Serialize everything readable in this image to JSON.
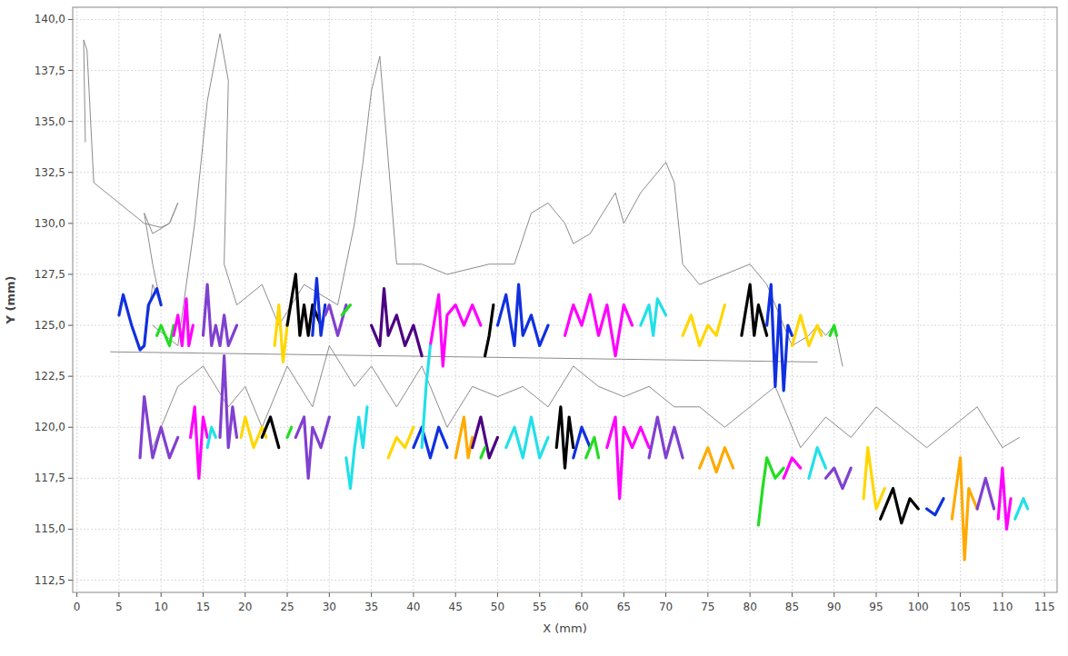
{
  "chart_data": {
    "type": "line",
    "x_label": "X (mm)",
    "y_label": "Y (mm)",
    "xlim": [
      -0.5,
      116.5
    ],
    "ylim": [
      111.9,
      140.6
    ],
    "xticks": [
      0,
      5,
      10,
      15,
      20,
      25,
      30,
      35,
      40,
      45,
      50,
      55,
      60,
      65,
      70,
      75,
      80,
      85,
      90,
      95,
      100,
      105,
      110,
      115
    ],
    "yticks": [
      {
        "value": 112.5,
        "label": "112,5"
      },
      {
        "value": 115,
        "label": "115,0"
      },
      {
        "value": 117.5,
        "label": "117,5"
      },
      {
        "value": 120,
        "label": "120,0"
      },
      {
        "value": 122.5,
        "label": "122,5"
      },
      {
        "value": 125,
        "label": "125,0"
      },
      {
        "value": 127.5,
        "label": "127,5"
      },
      {
        "value": 130,
        "label": "130,0"
      },
      {
        "value": 132.5,
        "label": "132,5"
      },
      {
        "value": 135,
        "label": "135,0"
      },
      {
        "value": 137.5,
        "label": "137,5"
      },
      {
        "value": 140,
        "label": "140,0"
      }
    ],
    "grid": true,
    "tick_labels": true,
    "series": [
      {
        "color": "#8c8c8c",
        "line_style": "thin",
        "x": [
          1,
          0.8,
          1.2,
          2,
          5,
          8,
          10,
          11,
          12,
          11,
          9,
          8,
          9,
          10,
          9,
          8.5
        ],
        "values": [
          134,
          139,
          138.5,
          132,
          131,
          130,
          129.8,
          130,
          131,
          130,
          129.5,
          130.5,
          128,
          126,
          127,
          125.5
        ]
      },
      {
        "color": "#8c8c8c",
        "line_style": "thin",
        "x": [
          9,
          12,
          14,
          15.5,
          17,
          18,
          17.5,
          19,
          22,
          24,
          27,
          31,
          33,
          34,
          35,
          36,
          38,
          41,
          44,
          49,
          52,
          54,
          56,
          58,
          59,
          61,
          64,
          65,
          67,
          69,
          70,
          71,
          72,
          74,
          77,
          80,
          82,
          85,
          87,
          88,
          89,
          90,
          91
        ],
        "values": [
          125,
          124,
          130,
          136,
          139.3,
          137,
          128,
          126,
          127,
          125,
          127,
          126,
          130,
          133,
          136.5,
          138.2,
          128,
          128,
          127.5,
          128,
          128,
          130.5,
          131,
          130,
          129,
          129.5,
          131.5,
          130,
          131.5,
          132.5,
          133,
          132,
          128,
          127,
          127.5,
          128,
          127,
          124,
          124.5,
          125,
          124.5,
          125,
          123
        ]
      },
      {
        "color": "#8c8c8c",
        "line_style": "thin",
        "x": [
          4,
          88
        ],
        "values": [
          123.7,
          123.2
        ]
      },
      {
        "color": "#8c8c8c",
        "line_style": "thin",
        "x": [
          9,
          12,
          15,
          18,
          20,
          22,
          25,
          28,
          30,
          33,
          35,
          38,
          41,
          44,
          47,
          50,
          53,
          56,
          59,
          62,
          65,
          68,
          71,
          74,
          77,
          80,
          83,
          86,
          89,
          92,
          95,
          98,
          101,
          104,
          107,
          110,
          112
        ],
        "values": [
          119,
          122,
          123,
          121,
          122,
          120,
          123,
          121,
          124,
          122,
          123,
          121,
          123,
          120,
          122,
          121.5,
          122,
          121,
          123,
          122,
          121.5,
          122,
          121,
          121,
          120,
          121,
          122,
          119,
          120.5,
          119.5,
          121,
          120,
          119,
          120,
          121,
          119,
          119.5
        ]
      },
      {
        "color": "#1030e0",
        "line_style": "bold",
        "x": [
          5,
          5.5,
          6.5,
          7.5,
          8,
          8.5,
          9.5,
          10
        ],
        "values": [
          125.5,
          126.5,
          125,
          123.8,
          124,
          126,
          126.8,
          126
        ]
      },
      {
        "color": "#22dd22",
        "line_style": "bold",
        "x": [
          9.5,
          10,
          11,
          11.5
        ],
        "values": [
          124.5,
          125,
          124,
          125
        ]
      },
      {
        "color": "#ff00ff",
        "line_style": "bold",
        "x": [
          11.5,
          12,
          12.5,
          13,
          13.3,
          13.8
        ],
        "values": [
          124.5,
          125.5,
          124,
          126.3,
          124,
          125
        ]
      },
      {
        "color": "#8040d0",
        "line_style": "bold",
        "x": [
          15,
          15.5,
          16,
          16.5,
          17,
          17.5,
          18,
          19
        ],
        "values": [
          124.5,
          127,
          124,
          125,
          124,
          125.5,
          124,
          125
        ]
      },
      {
        "color": "#ffd700",
        "line_style": "bold",
        "x": [
          23.5,
          24,
          24.5,
          25
        ],
        "values": [
          124,
          126,
          123.2,
          125
        ]
      },
      {
        "color": "#000000",
        "line_style": "bold",
        "x": [
          25,
          26,
          26.5,
          27,
          27.5,
          28,
          29
        ],
        "values": [
          125,
          127.5,
          124.5,
          126,
          124.5,
          126,
          125
        ]
      },
      {
        "color": "#1030e0",
        "line_style": "bold",
        "x": [
          28,
          28.5,
          29,
          29.5
        ],
        "values": [
          124.5,
          127.3,
          124.5,
          126
        ]
      },
      {
        "color": "#8040d0",
        "line_style": "bold",
        "x": [
          29.5,
          30,
          31,
          32
        ],
        "values": [
          125.5,
          126,
          124.5,
          126
        ]
      },
      {
        "color": "#22dd22",
        "line_style": "bold",
        "x": [
          31.5,
          32.5
        ],
        "values": [
          125.5,
          126
        ]
      },
      {
        "color": "#4b0082",
        "line_style": "bold",
        "x": [
          35,
          36,
          36.5,
          37,
          38,
          39,
          40,
          41
        ],
        "values": [
          125,
          124,
          126.8,
          124.5,
          125.5,
          124,
          125,
          123.5
        ]
      },
      {
        "color": "#ff00ff",
        "line_style": "bold",
        "x": [
          42,
          43,
          43.5,
          44,
          45,
          46,
          47,
          48
        ],
        "values": [
          124,
          126.5,
          123,
          125.5,
          126,
          125,
          126,
          125
        ]
      },
      {
        "color": "#000000",
        "line_style": "bold",
        "x": [
          48.5,
          49,
          49.5
        ],
        "values": [
          123.5,
          124.5,
          126
        ]
      },
      {
        "color": "#1030e0",
        "line_style": "bold",
        "x": [
          50,
          51,
          52,
          52.5,
          53,
          54,
          55,
          56
        ],
        "values": [
          125,
          126.5,
          124,
          127,
          124.5,
          125.5,
          124,
          125
        ]
      },
      {
        "color": "#ff00ff",
        "line_style": "bold",
        "x": [
          58,
          59,
          60,
          61,
          62,
          63,
          64,
          65,
          66
        ],
        "values": [
          124.5,
          126,
          125,
          126.5,
          124.5,
          126,
          123.5,
          126,
          125
        ]
      },
      {
        "color": "#22e0e8",
        "line_style": "bold",
        "x": [
          67,
          68,
          68.5,
          69,
          70
        ],
        "values": [
          125,
          126,
          124.5,
          126.3,
          125.5
        ]
      },
      {
        "color": "#ffd700",
        "line_style": "bold",
        "x": [
          72,
          73,
          74,
          75,
          76,
          77
        ],
        "values": [
          124.5,
          125.5,
          124,
          125,
          124.5,
          126
        ]
      },
      {
        "color": "#000000",
        "line_style": "bold",
        "x": [
          79,
          80,
          80.5,
          81,
          82
        ],
        "values": [
          124.5,
          127,
          124.5,
          126,
          124.5
        ]
      },
      {
        "color": "#1030e0",
        "line_style": "bold",
        "x": [
          82,
          82.5,
          83,
          83.5,
          84,
          84.5,
          85
        ],
        "values": [
          125,
          127,
          122,
          126,
          121.8,
          125,
          124.5
        ]
      },
      {
        "color": "#ffd700",
        "line_style": "bold",
        "x": [
          85,
          86,
          87,
          88,
          88.5
        ],
        "values": [
          124,
          125.5,
          124,
          125,
          124.5
        ]
      },
      {
        "color": "#22dd22",
        "line_style": "bold",
        "x": [
          89.5,
          90,
          90.3
        ],
        "values": [
          124.5,
          125,
          124.5
        ]
      },
      {
        "color": "#8040d0",
        "line_style": "bold",
        "x": [
          7.5,
          8,
          9,
          10,
          11,
          12
        ],
        "values": [
          118.5,
          121.5,
          118.5,
          120,
          118.5,
          119.5
        ]
      },
      {
        "color": "#ff00ff",
        "line_style": "bold",
        "x": [
          13.5,
          14,
          14.5,
          15,
          15.5
        ],
        "values": [
          119.5,
          121,
          117.5,
          120.5,
          119.5
        ]
      },
      {
        "color": "#22e0e8",
        "line_style": "bold",
        "x": [
          15.5,
          16,
          16.5
        ],
        "values": [
          119,
          120,
          119.5
        ]
      },
      {
        "color": "#8040d0",
        "line_style": "bold",
        "x": [
          17,
          17.5,
          18,
          18.5,
          19
        ],
        "values": [
          119.5,
          123.5,
          119,
          121,
          119.5
        ]
      },
      {
        "color": "#ffd700",
        "line_style": "bold",
        "x": [
          19.5,
          20,
          21,
          22,
          22.5
        ],
        "values": [
          119.5,
          120.5,
          119,
          120,
          119.5
        ]
      },
      {
        "color": "#000000",
        "line_style": "bold",
        "x": [
          22,
          23,
          24
        ],
        "values": [
          119.5,
          120.5,
          119
        ]
      },
      {
        "color": "#22dd22",
        "line_style": "bold",
        "x": [
          25,
          25.5
        ],
        "values": [
          119.5,
          120
        ]
      },
      {
        "color": "#8040d0",
        "line_style": "bold",
        "x": [
          26,
          27,
          27.5,
          28,
          29,
          30
        ],
        "values": [
          119.5,
          120.5,
          117.5,
          120,
          119,
          120.5
        ]
      },
      {
        "color": "#22e0e8",
        "line_style": "bold",
        "x": [
          32,
          32.5,
          33,
          33.5,
          34,
          34.5
        ],
        "values": [
          118.5,
          117,
          119,
          120.5,
          119,
          121
        ]
      },
      {
        "color": "#ffd700",
        "line_style": "bold",
        "x": [
          37,
          38,
          39,
          40
        ],
        "values": [
          118.5,
          119.5,
          119,
          120
        ]
      },
      {
        "color": "#1030e0",
        "line_style": "bold",
        "x": [
          40,
          41,
          42,
          43,
          44
        ],
        "values": [
          119,
          120,
          118.5,
          120,
          119
        ]
      },
      {
        "color": "#22e0e8",
        "line_style": "bold",
        "x": [
          41,
          41.5,
          42
        ],
        "values": [
          119,
          122,
          124
        ]
      },
      {
        "color": "#ffaa00",
        "line_style": "bold",
        "x": [
          45,
          46,
          46.5,
          47
        ],
        "values": [
          118.5,
          120.5,
          118.5,
          119.5
        ]
      },
      {
        "color": "#4b0082",
        "line_style": "bold",
        "x": [
          47,
          48,
          49,
          50
        ],
        "values": [
          119,
          120.5,
          118.5,
          119.5
        ]
      },
      {
        "color": "#22dd22",
        "line_style": "bold",
        "x": [
          48,
          48.5
        ],
        "values": [
          118.5,
          119
        ]
      },
      {
        "color": "#22e0e8",
        "line_style": "bold",
        "x": [
          51,
          52,
          53,
          54,
          55,
          56
        ],
        "values": [
          119,
          120,
          118.5,
          120.5,
          118.5,
          119.5
        ]
      },
      {
        "color": "#000000",
        "line_style": "bold",
        "x": [
          57,
          57.5,
          58,
          58.5,
          59
        ],
        "values": [
          119,
          121,
          118,
          120.5,
          119
        ]
      },
      {
        "color": "#1030e0",
        "line_style": "bold",
        "x": [
          59,
          60,
          61
        ],
        "values": [
          118.5,
          120,
          119
        ]
      },
      {
        "color": "#22dd22",
        "line_style": "bold",
        "x": [
          60.5,
          61.5,
          62
        ],
        "values": [
          118.5,
          119.5,
          118.5
        ]
      },
      {
        "color": "#ff00ff",
        "line_style": "bold",
        "x": [
          63,
          64,
          64.5,
          65,
          66,
          67,
          68
        ],
        "values": [
          119,
          120.5,
          116.5,
          120,
          119,
          120,
          119
        ]
      },
      {
        "color": "#8040d0",
        "line_style": "bold",
        "x": [
          68,
          69,
          70,
          71,
          72
        ],
        "values": [
          118.5,
          120.5,
          118.5,
          120,
          118.5
        ]
      },
      {
        "color": "#ffaa00",
        "line_style": "bold",
        "x": [
          74,
          75,
          76,
          77,
          78
        ],
        "values": [
          118,
          119,
          117.8,
          119,
          118
        ]
      },
      {
        "color": "#22dd22",
        "line_style": "bold",
        "x": [
          81,
          81.5,
          82,
          83,
          84
        ],
        "values": [
          115.2,
          117,
          118.5,
          117.5,
          118
        ]
      },
      {
        "color": "#ff00ff",
        "line_style": "bold",
        "x": [
          84,
          85,
          86
        ],
        "values": [
          117.5,
          118.5,
          118
        ]
      },
      {
        "color": "#22e0e8",
        "line_style": "bold",
        "x": [
          87,
          88,
          89
        ],
        "values": [
          117.5,
          119,
          118
        ]
      },
      {
        "color": "#8040d0",
        "line_style": "bold",
        "x": [
          89,
          90,
          91,
          92
        ],
        "values": [
          117.5,
          118,
          117,
          118
        ]
      },
      {
        "color": "#ffd700",
        "line_style": "bold",
        "x": [
          93.5,
          94,
          95,
          96
        ],
        "values": [
          116.5,
          119,
          116,
          117
        ]
      },
      {
        "color": "#000000",
        "line_style": "bold",
        "x": [
          95.5,
          97,
          98,
          99,
          100
        ],
        "values": [
          115.5,
          117,
          115.3,
          116.5,
          116
        ]
      },
      {
        "color": "#1030e0",
        "line_style": "bold",
        "x": [
          101,
          102,
          103
        ],
        "values": [
          116,
          115.7,
          116.5
        ]
      },
      {
        "color": "#ffaa00",
        "line_style": "bold",
        "x": [
          104,
          105,
          105.5,
          106,
          107
        ],
        "values": [
          115.5,
          118.5,
          113.5,
          117,
          116
        ]
      },
      {
        "color": "#8040d0",
        "line_style": "bold",
        "x": [
          107,
          108,
          109
        ],
        "values": [
          116,
          117.5,
          116
        ]
      },
      {
        "color": "#ff00ff",
        "line_style": "bold",
        "x": [
          109.5,
          110,
          110.5,
          111
        ],
        "values": [
          115.5,
          118,
          115,
          116.5
        ]
      },
      {
        "color": "#22e0e8",
        "line_style": "bold",
        "x": [
          111.5,
          112.5,
          113
        ],
        "values": [
          115.5,
          116.5,
          116
        ]
      }
    ]
  }
}
